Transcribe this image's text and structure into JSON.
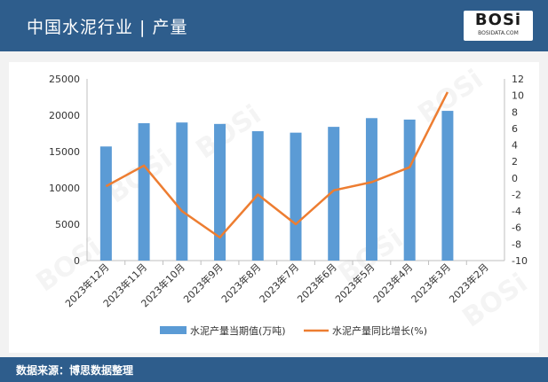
{
  "header": {
    "title": "中国水泥行业 | 产量"
  },
  "logo": {
    "mark": "BOSi",
    "sub": "BOSIDATA.COM"
  },
  "footer": {
    "source": "数据来源：博思数据整理"
  },
  "colors": {
    "header_bg": "#2e5d8c",
    "bar": "#5b9bd5",
    "line": "#ed7d31"
  },
  "chart_data": {
    "type": "bar",
    "categories": [
      "2023年12月",
      "2023年11月",
      "2023年10月",
      "2023年9月",
      "2023年8月",
      "2023年7月",
      "2023年6月",
      "2023年5月",
      "2023年4月",
      "2023年3月",
      "2023年2月"
    ],
    "series": [
      {
        "name": "水泥产量当期值(万吨)",
        "type": "bar",
        "axis": "left",
        "values": [
          15700,
          18900,
          19000,
          18800,
          17800,
          17600,
          18400,
          19600,
          19400,
          20600,
          null
        ]
      },
      {
        "name": "水泥产量同比增长(%)",
        "type": "line",
        "axis": "right",
        "values": [
          -1.0,
          1.5,
          -4.0,
          -7.2,
          -2.0,
          -5.6,
          -1.5,
          -0.5,
          1.3,
          10.4,
          null
        ]
      }
    ],
    "y_left": {
      "min": 0,
      "max": 25000,
      "ticks": [
        0,
        5000,
        10000,
        15000,
        20000,
        25000
      ]
    },
    "y_right": {
      "min": -10,
      "max": 12,
      "ticks": [
        -10,
        -8,
        -6,
        -4,
        -2,
        0,
        2,
        4,
        6,
        8,
        10,
        12
      ]
    },
    "legend_position": "bottom"
  }
}
